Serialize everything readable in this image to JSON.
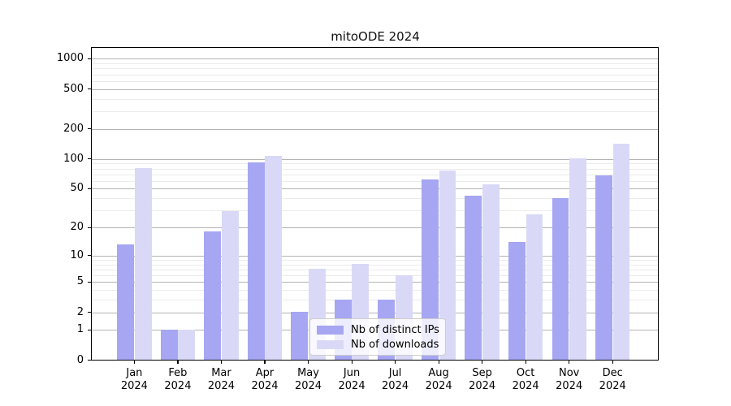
{
  "title": "mitoODE 2024",
  "chart_data": {
    "type": "bar",
    "title": "mitoODE 2024",
    "x_categories": [
      "Jan 2024",
      "Feb 2024",
      "Mar 2024",
      "Apr 2024",
      "May 2024",
      "Jun 2024",
      "Jul 2024",
      "Aug 2024",
      "Sep 2024",
      "Oct 2024",
      "Nov 2024",
      "Dec 2024"
    ],
    "series": [
      {
        "name": "Nb of distinct IPs",
        "color": "#a6a6f2",
        "values": [
          13,
          1,
          18,
          92,
          2,
          3,
          3,
          61,
          42,
          14,
          40,
          68
        ]
      },
      {
        "name": "Nb of downloads",
        "color": "#d9d9f7",
        "values": [
          80,
          1,
          29,
          107,
          7,
          8,
          6,
          75,
          55,
          27,
          100,
          140
        ]
      }
    ],
    "y_axis": {
      "scale": "log1p",
      "tick_values": [
        0,
        1,
        2,
        5,
        10,
        20,
        50,
        100,
        200,
        500,
        1000
      ],
      "tick_labels": [
        "0",
        "1",
        "2",
        "5",
        "10",
        "20",
        "50",
        "100",
        "200",
        "500",
        "1000"
      ],
      "minor_gridline_values": [
        3,
        4,
        6,
        7,
        8,
        9,
        30,
        40,
        60,
        70,
        80,
        90,
        300,
        400,
        600,
        700,
        800,
        900
      ],
      "range": [
        0,
        1300
      ],
      "grid": "on"
    },
    "legend": {
      "position": "lower center",
      "entries": [
        "Nb of distinct IPs",
        "Nb of downloads"
      ]
    },
    "colors": {
      "major_grid": "#b4b4b4",
      "minor_grid": "#ebebeb",
      "axis": "#000000",
      "background": "#ffffff",
      "legend_face": "rgba(255,255,255,0.8)",
      "legend_edge": "#cccccc"
    }
  }
}
